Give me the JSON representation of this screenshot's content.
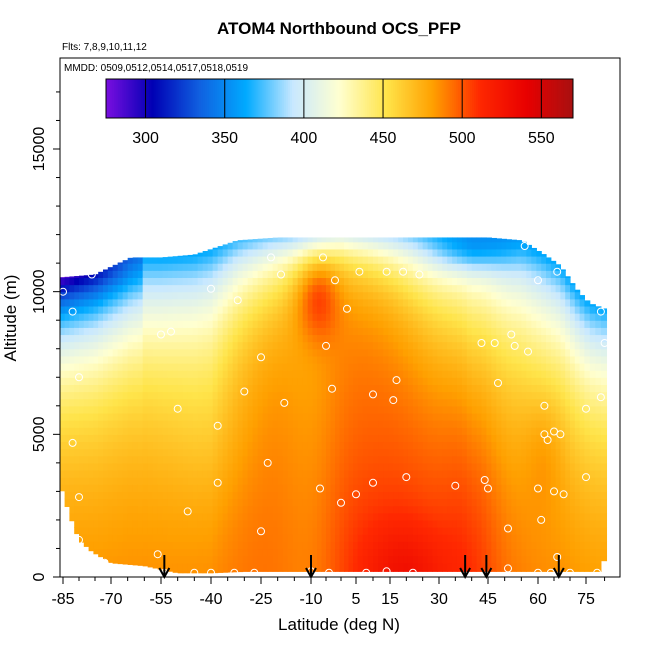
{
  "chart_data": {
    "type": "heatmap",
    "title": "ATOM4 Northbound OCS_PFP",
    "subtitle_flights": "Flts: 7,8,9,10,11,12",
    "subtitle_dates": "MMDD: 0509,0512,0514,0517,0518,0519",
    "xlabel": "Latitude (deg N)",
    "ylabel": "Altitude (m)",
    "xlim": [
      -87,
      82
    ],
    "ylim": [
      0,
      17500
    ],
    "x_ticks": [
      -85,
      -70,
      -55,
      -40,
      -25,
      -10,
      5,
      15,
      30,
      45,
      60,
      75
    ],
    "x_tick_labels": [
      "-85",
      "-70",
      "-55",
      "-40",
      "-25",
      "-10",
      "5",
      "15",
      "30",
      "45",
      "60",
      "75"
    ],
    "y_ticks": [
      0,
      5000,
      10000,
      15000
    ],
    "y_tick_labels": [
      "0",
      "5000",
      "10000",
      "15000"
    ],
    "colorbar": {
      "min": 275,
      "max": 570,
      "ticks": [
        300,
        350,
        400,
        450,
        500,
        550
      ],
      "tick_labels": [
        "300",
        "350",
        "400",
        "450",
        "500",
        "550"
      ]
    },
    "colormap": [
      "#7a0ee0",
      "#0000b4",
      "#1060e0",
      "#00aaff",
      "#c8e8ff",
      "#ffffd0",
      "#ffe44a",
      "#ffa000",
      "#ff2800",
      "#e80000",
      "#a81010"
    ],
    "profile_latitudes": [
      -54,
      -10,
      38,
      44.5,
      66.5
    ],
    "top_profile": [
      [
        -86,
        10500
      ],
      [
        -75,
        10600
      ],
      [
        -64,
        11200
      ],
      [
        -55,
        11200
      ],
      [
        -45,
        11300
      ],
      [
        -32,
        11800
      ],
      [
        -20,
        11900
      ],
      [
        -10,
        11900
      ],
      [
        5,
        11900
      ],
      [
        25,
        11900
      ],
      [
        45,
        11900
      ],
      [
        55,
        11800
      ],
      [
        62,
        11300
      ],
      [
        67,
        10900
      ],
      [
        72,
        10100
      ],
      [
        76,
        9600
      ],
      [
        80,
        9400
      ]
    ],
    "bottom_profile": [
      [
        -86,
        3300
      ],
      [
        -83,
        2200
      ],
      [
        -80,
        1300
      ],
      [
        -76,
        900
      ],
      [
        -70,
        500
      ],
      [
        -60,
        400
      ],
      [
        -50,
        150
      ],
      [
        -40,
        150
      ],
      [
        -30,
        200
      ],
      [
        79,
        200
      ],
      [
        80,
        700
      ]
    ],
    "sample_points": [
      [
        -85,
        10000
      ],
      [
        -82,
        9300
      ],
      [
        -76,
        10600
      ],
      [
        -80,
        7000
      ],
      [
        -82,
        4700
      ],
      [
        -80,
        2800
      ],
      [
        -80,
        1300
      ],
      [
        -72,
        500
      ],
      [
        -55,
        8500
      ],
      [
        -52,
        8600
      ],
      [
        -50,
        5900
      ],
      [
        -40,
        10100
      ],
      [
        -38,
        5300
      ],
      [
        -38,
        3300
      ],
      [
        -32,
        9700
      ],
      [
        -30,
        6500
      ],
      [
        -25,
        7700
      ],
      [
        -22,
        11200
      ],
      [
        -23,
        4000
      ],
      [
        -25,
        1600
      ],
      [
        -47,
        2300
      ],
      [
        -56,
        800
      ],
      [
        -54,
        150
      ],
      [
        -45,
        150
      ],
      [
        -40,
        150
      ],
      [
        -33,
        150
      ],
      [
        -27,
        150
      ],
      [
        -19,
        10600
      ],
      [
        -18,
        6100
      ],
      [
        -6,
        11200
      ],
      [
        -2,
        10400
      ],
      [
        -5,
        8100
      ],
      [
        -3,
        6600
      ],
      [
        -7,
        3100
      ],
      [
        -10,
        200
      ],
      [
        2,
        9400
      ],
      [
        0,
        2600
      ],
      [
        -4,
        150
      ],
      [
        6,
        10700
      ],
      [
        10,
        6400
      ],
      [
        5,
        2900
      ],
      [
        8,
        150
      ],
      [
        10,
        3300
      ],
      [
        14,
        10700
      ],
      [
        16,
        6200
      ],
      [
        17,
        6900
      ],
      [
        19,
        10700
      ],
      [
        20,
        3500
      ],
      [
        14,
        200
      ],
      [
        24,
        10600
      ],
      [
        22,
        150
      ],
      [
        35,
        3200
      ],
      [
        43,
        8200
      ],
      [
        47,
        8200
      ],
      [
        48,
        6800
      ],
      [
        44,
        3400
      ],
      [
        45,
        3100
      ],
      [
        52,
        8500
      ],
      [
        53,
        8100
      ],
      [
        57,
        7900
      ],
      [
        51,
        1700
      ],
      [
        51,
        300
      ],
      [
        56,
        11600
      ],
      [
        60,
        10400
      ],
      [
        66,
        10700
      ],
      [
        72,
        10700
      ],
      [
        79,
        9300
      ],
      [
        80,
        8200
      ],
      [
        79,
        6300
      ],
      [
        75,
        5900
      ],
      [
        62,
        5000
      ],
      [
        63,
        4800
      ],
      [
        60,
        3100
      ],
      [
        61,
        2000
      ],
      [
        65,
        3000
      ],
      [
        68,
        2900
      ],
      [
        62,
        6000
      ],
      [
        65,
        5100
      ],
      [
        67,
        5000
      ],
      [
        75,
        3500
      ],
      [
        60,
        150
      ],
      [
        64,
        150
      ],
      [
        70,
        150
      ],
      [
        78,
        150
      ],
      [
        66,
        700
      ]
    ]
  }
}
